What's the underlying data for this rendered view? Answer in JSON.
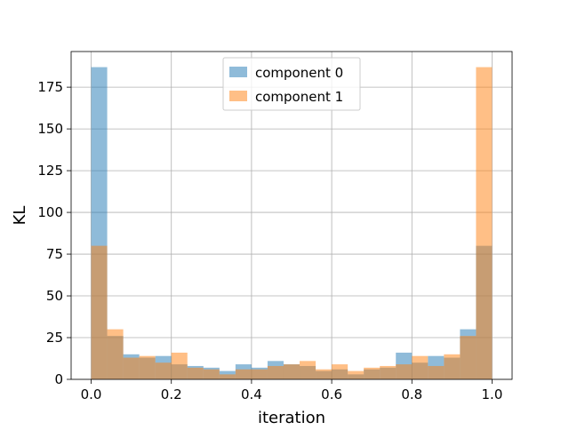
{
  "chart_data": {
    "type": "bar",
    "title": "",
    "xlabel": "iteration",
    "ylabel": "KL",
    "xlim": [
      -0.05,
      1.05
    ],
    "ylim": [
      0,
      196.35
    ],
    "bin_edges": [
      0.0,
      0.04,
      0.08,
      0.12,
      0.16,
      0.2,
      0.24,
      0.28,
      0.32,
      0.36,
      0.4,
      0.44,
      0.48,
      0.52,
      0.56,
      0.6,
      0.64,
      0.68,
      0.72,
      0.76,
      0.8,
      0.84,
      0.88,
      0.92,
      0.96,
      1.0
    ],
    "x_ticks": [
      {
        "value": 0.0,
        "label": "0.0"
      },
      {
        "value": 0.2,
        "label": "0.2"
      },
      {
        "value": 0.4,
        "label": "0.4"
      },
      {
        "value": 0.6,
        "label": "0.6"
      },
      {
        "value": 0.8,
        "label": "0.8"
      },
      {
        "value": 1.0,
        "label": "1.0"
      }
    ],
    "y_ticks": [
      {
        "value": 0,
        "label": "0"
      },
      {
        "value": 25,
        "label": "25"
      },
      {
        "value": 50,
        "label": "50"
      },
      {
        "value": 75,
        "label": "75"
      },
      {
        "value": 100,
        "label": "100"
      },
      {
        "value": 125,
        "label": "125"
      },
      {
        "value": 150,
        "label": "150"
      },
      {
        "value": 175,
        "label": "175"
      }
    ],
    "grid": true,
    "legend_position": "top-center",
    "series": [
      {
        "name": "component 0",
        "color": "#1f77b4",
        "alpha": 0.5,
        "values": [
          187,
          26,
          15,
          13,
          14,
          9,
          8,
          7,
          5,
          9,
          7,
          11,
          9,
          8,
          5,
          6,
          3,
          6,
          7,
          16,
          10,
          14,
          13,
          30,
          80
        ]
      },
      {
        "name": "component 1",
        "color": "#ff7f0e",
        "alpha": 0.5,
        "values": [
          80,
          30,
          13,
          14,
          10,
          16,
          7,
          6,
          3,
          6,
          6,
          8,
          9,
          11,
          6,
          9,
          5,
          7,
          8,
          9,
          14,
          8,
          15,
          26,
          187
        ]
      }
    ]
  }
}
